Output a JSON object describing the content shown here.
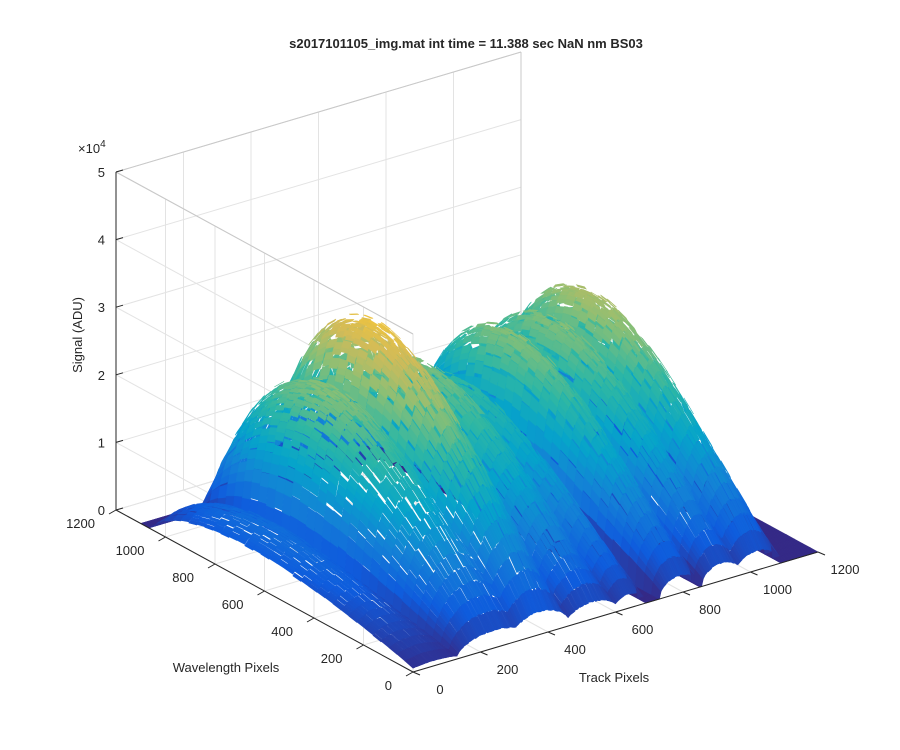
{
  "chart_data": {
    "type": "surface",
    "title": "s2017101105_img.mat int time = 11.388 sec  NaN nm BS03",
    "xlabel": "Track Pixels",
    "ylabel": "Wavelength Pixels",
    "zlabel": "Signal (ADU)",
    "z_exponent": "×10",
    "z_exponent_power": "4",
    "xlim": [
      0,
      1200
    ],
    "ylim": [
      0,
      1200
    ],
    "zlim": [
      0,
      50000
    ],
    "x_ticks": [
      "0",
      "200",
      "400",
      "600",
      "800",
      "1000",
      "1200"
    ],
    "y_ticks": [
      "0",
      "200",
      "400",
      "600",
      "800",
      "1000",
      "1200"
    ],
    "z_ticks": [
      "0",
      "1",
      "2",
      "3",
      "4",
      "5"
    ],
    "grid": true,
    "colormap": "parula",
    "colormap_stops": [
      "#352a87",
      "#0f5cdd",
      "#1481d6",
      "#06a4ca",
      "#2eb7a4",
      "#87bf77",
      "#d1bb59",
      "#fec832",
      "#f9fb0e"
    ],
    "spectral_bands": [
      {
        "track_center": 60,
        "track_halfwidth": 85,
        "peak_signal": 9000
      },
      {
        "track_center": 240,
        "track_halfwidth": 110,
        "peak_signal": 30000
      },
      {
        "track_center": 375,
        "track_halfwidth": 90,
        "peak_signal": 39000
      },
      {
        "track_center": 530,
        "track_halfwidth": 80,
        "peak_signal": 29000
      },
      {
        "track_center": 640,
        "track_halfwidth": 50,
        "peak_signal": 24000
      },
      {
        "track_center": 790,
        "track_halfwidth": 60,
        "peak_signal": 30000
      },
      {
        "track_center": 915,
        "track_halfwidth": 60,
        "peak_signal": 30000
      },
      {
        "track_center": 1020,
        "track_halfwidth": 70,
        "peak_signal": 33000
      }
    ],
    "wavelength_signal_extent": [
      0,
      1050
    ]
  }
}
